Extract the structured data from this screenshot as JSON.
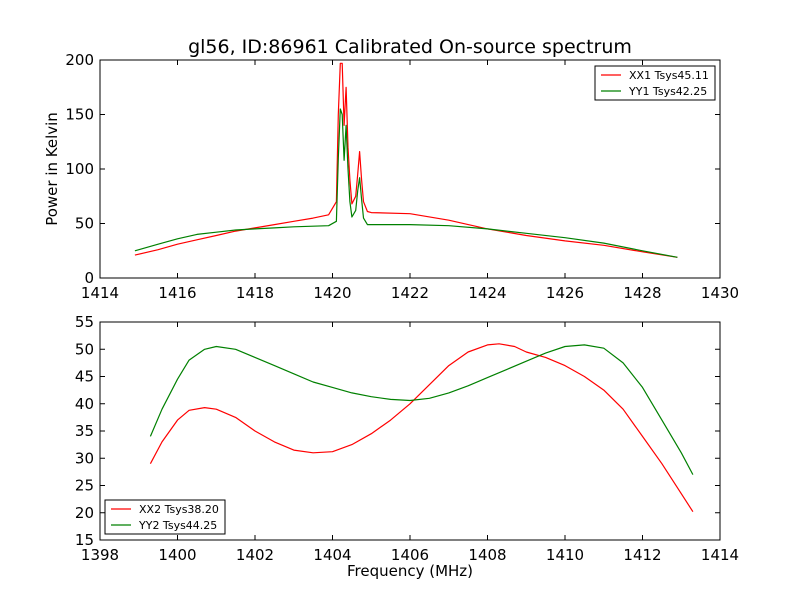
{
  "chart_data": [
    {
      "type": "line",
      "title": "gl56, ID:86961 Calibrated On-source spectrum",
      "xlabel": "",
      "ylabel": "Power in Kelvin",
      "xlim": [
        1414,
        1430
      ],
      "ylim": [
        0,
        200
      ],
      "xticks": [
        "1414",
        "1416",
        "1418",
        "1420",
        "1422",
        "1424",
        "1426",
        "1428",
        "1430"
      ],
      "yticks": [
        "0",
        "50",
        "100",
        "150",
        "200"
      ],
      "legend_position": "top-right",
      "grid": false,
      "series": [
        {
          "name": "XX1 Tsys45.11",
          "color": "#ff0000",
          "x": [
            1414.9,
            1415.5,
            1416.0,
            1416.5,
            1417.0,
            1417.5,
            1418.0,
            1418.5,
            1419.0,
            1419.5,
            1419.9,
            1420.1,
            1420.15,
            1420.2,
            1420.25,
            1420.3,
            1420.35,
            1420.4,
            1420.45,
            1420.5,
            1420.6,
            1420.65,
            1420.7,
            1420.75,
            1420.8,
            1420.9,
            1421.0,
            1422.0,
            1423.0,
            1424.0,
            1425.0,
            1426.0,
            1427.0,
            1428.0,
            1428.9
          ],
          "y": [
            21,
            26,
            31,
            35,
            39,
            43,
            46,
            49,
            52,
            55,
            58,
            70,
            150,
            197,
            197,
            140,
            175,
            120,
            90,
            68,
            75,
            95,
            116,
            90,
            70,
            61,
            60,
            59,
            53,
            45,
            39,
            34,
            30,
            24,
            19
          ]
        },
        {
          "name": "YY1 Tsys42.25",
          "color": "#008000",
          "x": [
            1414.9,
            1415.5,
            1416.0,
            1416.5,
            1417.0,
            1417.5,
            1418.0,
            1418.5,
            1419.0,
            1419.5,
            1419.9,
            1420.1,
            1420.15,
            1420.2,
            1420.25,
            1420.3,
            1420.35,
            1420.4,
            1420.45,
            1420.5,
            1420.6,
            1420.65,
            1420.7,
            1420.75,
            1420.8,
            1420.9,
            1421.0,
            1422.0,
            1423.0,
            1424.0,
            1425.0,
            1426.0,
            1427.0,
            1428.0,
            1428.9
          ],
          "y": [
            25,
            31,
            36,
            40,
            42,
            44,
            45,
            46,
            47,
            47.5,
            48,
            52,
            110,
            155,
            150,
            108,
            140,
            100,
            70,
            56,
            62,
            80,
            92,
            72,
            55,
            49,
            49,
            49,
            48,
            45,
            41,
            37,
            32,
            25,
            19
          ]
        }
      ]
    },
    {
      "type": "line",
      "title": "",
      "xlabel": "Frequency (MHz)",
      "ylabel": "",
      "xlim": [
        1398,
        1414
      ],
      "ylim": [
        15,
        55
      ],
      "xticks": [
        "1398",
        "1400",
        "1402",
        "1404",
        "1406",
        "1408",
        "1410",
        "1412",
        "1414"
      ],
      "yticks": [
        "15",
        "20",
        "25",
        "30",
        "35",
        "40",
        "45",
        "50",
        "55"
      ],
      "legend_position": "bottom-left",
      "grid": false,
      "series": [
        {
          "name": "XX2 Tsys38.20",
          "color": "#ff0000",
          "x": [
            1399.3,
            1399.6,
            1400.0,
            1400.3,
            1400.7,
            1401.0,
            1401.5,
            1402.0,
            1402.5,
            1403.0,
            1403.5,
            1404.0,
            1404.5,
            1405.0,
            1405.5,
            1406.0,
            1406.5,
            1407.0,
            1407.5,
            1408.0,
            1408.3,
            1408.7,
            1409.0,
            1409.5,
            1410.0,
            1410.5,
            1411.0,
            1411.5,
            1412.0,
            1412.5,
            1413.0,
            1413.3
          ],
          "y": [
            29,
            33,
            37,
            38.8,
            39.3,
            39,
            37.5,
            35,
            33,
            31.5,
            31,
            31.2,
            32.5,
            34.5,
            37,
            40,
            43.5,
            47,
            49.5,
            50.8,
            51,
            50.5,
            49.5,
            48.5,
            47,
            45,
            42.5,
            39,
            34,
            29,
            23.5,
            20.2
          ]
        },
        {
          "name": "YY2 Tsys44.25",
          "color": "#008000",
          "x": [
            1399.3,
            1399.6,
            1400.0,
            1400.3,
            1400.7,
            1401.0,
            1401.5,
            1402.0,
            1402.5,
            1403.0,
            1403.5,
            1404.0,
            1404.5,
            1405.0,
            1405.5,
            1406.0,
            1406.5,
            1407.0,
            1407.5,
            1408.0,
            1408.5,
            1409.0,
            1409.5,
            1410.0,
            1410.5,
            1411.0,
            1411.5,
            1412.0,
            1412.5,
            1413.0,
            1413.3
          ],
          "y": [
            34,
            39,
            44.5,
            48,
            50,
            50.5,
            50,
            48.5,
            47,
            45.5,
            44,
            43,
            42,
            41.3,
            40.8,
            40.6,
            41,
            42,
            43.3,
            44.8,
            46.3,
            47.8,
            49.3,
            50.5,
            50.8,
            50.2,
            47.5,
            43,
            37,
            31,
            27
          ]
        }
      ]
    }
  ]
}
